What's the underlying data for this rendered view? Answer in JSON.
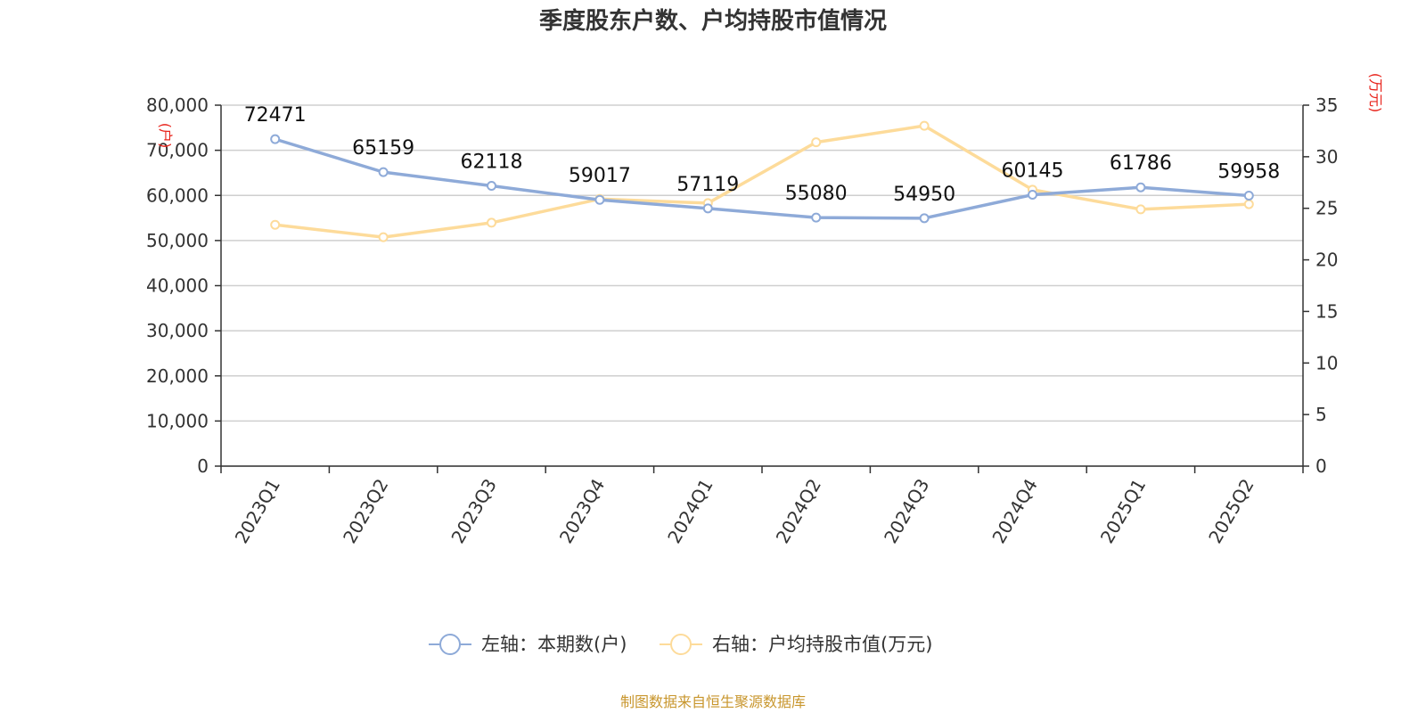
{
  "chart_data": {
    "type": "line",
    "title": "季度股东户数、户均持股市值情况",
    "categories": [
      "2023Q1",
      "2023Q2",
      "2023Q3",
      "2023Q4",
      "2024Q1",
      "2024Q2",
      "2024Q3",
      "2024Q4",
      "2025Q1",
      "2025Q2"
    ],
    "left_axis": {
      "unit": "(户)",
      "ylim": [
        0,
        80000
      ],
      "ticks": [
        0,
        10000,
        20000,
        30000,
        40000,
        50000,
        60000,
        70000,
        80000
      ],
      "tick_labels": [
        "0",
        "10,000",
        "20,000",
        "30,000",
        "40,000",
        "50,000",
        "60,000",
        "70,000",
        "80,000"
      ]
    },
    "right_axis": {
      "unit": "(万元)",
      "ylim": [
        0,
        35
      ],
      "ticks": [
        0,
        5,
        10,
        15,
        20,
        25,
        30,
        35
      ],
      "tick_labels": [
        "0",
        "5",
        "10",
        "15",
        "20",
        "25",
        "30",
        "35"
      ]
    },
    "series": [
      {
        "name": "左轴：本期数(户)",
        "axis": "left",
        "color": "#8eaad8",
        "values": [
          72471,
          65159,
          62118,
          59017,
          57119,
          55080,
          54950,
          60145,
          61786,
          59958
        ],
        "labels": [
          "72471",
          "65159",
          "62118",
          "59017",
          "57119",
          "55080",
          "54950",
          "60145",
          "61786",
          "59958"
        ]
      },
      {
        "name": "右轴：户均持股市值(万元)",
        "axis": "right",
        "color": "#fddb9a",
        "values": [
          23.4,
          22.2,
          23.6,
          25.9,
          25.5,
          31.4,
          33.0,
          26.8,
          24.9,
          25.4
        ]
      }
    ],
    "grid": true,
    "legend_position": "bottom"
  },
  "source_text": "制图数据来自恒生聚源数据库"
}
